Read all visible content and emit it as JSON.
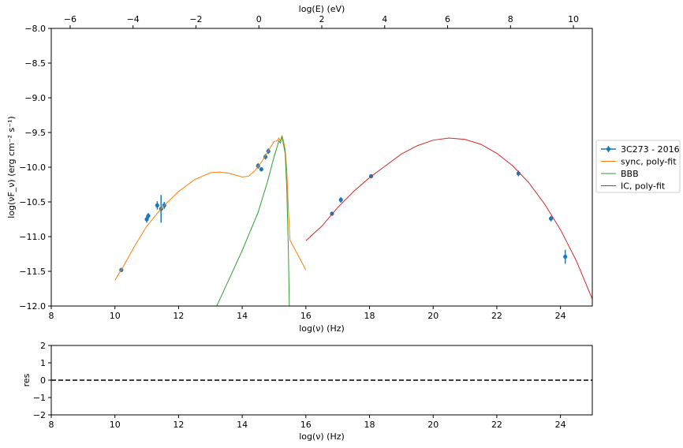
{
  "chart_data": [
    {
      "type": "line",
      "panel": "sed",
      "xlabel": "log(ν)  (Hz)",
      "ylabel": "log(νF_ν)  (erg cm⁻² s⁻¹)",
      "top_xlabel": "log(E) (eV)",
      "xlim": [
        8,
        25
      ],
      "ylim": [
        -12.0,
        -8.0
      ],
      "top_xlim": [
        -6.6,
        10.6
      ],
      "x_ticks": [
        8,
        10,
        12,
        14,
        16,
        18,
        20,
        22,
        24
      ],
      "y_ticks": [
        -12.0,
        -11.5,
        -11.0,
        -10.5,
        -10.0,
        -9.5,
        -9.0,
        -8.5,
        -8.0
      ],
      "y_tick_labels": [
        "−12.0",
        "−11.5",
        "−11.0",
        "−10.5",
        "−10.0",
        "−9.5",
        "−9.0",
        "−8.5",
        "−8.0"
      ],
      "top_ticks": [
        -6,
        -4,
        -2,
        0,
        2,
        4,
        6,
        8,
        10
      ],
      "top_tick_labels": [
        "−6",
        "−4",
        "−2",
        "0",
        "2",
        "4",
        "6",
        "8",
        "10"
      ],
      "legend_position": "outside-right",
      "grid": false,
      "series": [
        {
          "name": "3C273 - 2016",
          "kind": "errorbar",
          "color": "#1f77b4",
          "points": [
            {
              "x": 10.2,
              "y": -11.48,
              "yerr": 0.03
            },
            {
              "x": 11.0,
              "y": -10.75,
              "yerr": 0.05
            },
            {
              "x": 11.05,
              "y": -10.7,
              "yerr": 0.04
            },
            {
              "x": 11.33,
              "y": -10.55,
              "yerr": 0.06
            },
            {
              "x": 11.45,
              "y": -10.6,
              "yerr": 0.2
            },
            {
              "x": 11.55,
              "y": -10.55,
              "yerr": 0.05
            },
            {
              "x": 14.5,
              "y": -9.98,
              "yerr": 0.04
            },
            {
              "x": 14.6,
              "y": -10.03,
              "yerr": 0.03
            },
            {
              "x": 14.73,
              "y": -9.85,
              "yerr": 0.04
            },
            {
              "x": 14.82,
              "y": -9.77,
              "yerr": 0.04
            },
            {
              "x": 16.82,
              "y": -10.67,
              "yerr": 0.03
            },
            {
              "x": 17.1,
              "y": -10.47,
              "yerr": 0.04
            },
            {
              "x": 18.05,
              "y": -10.13,
              "yerr": 0.03
            },
            {
              "x": 22.68,
              "y": -10.09,
              "yerr": 0.04
            },
            {
              "x": 23.7,
              "y": -10.74,
              "yerr": 0.04
            },
            {
              "x": 24.15,
              "y": -11.29,
              "yerr": 0.1
            }
          ]
        },
        {
          "name": "sync, poly-fit",
          "kind": "line",
          "color": "#ff7f0e",
          "points": [
            [
              10.0,
              -11.63
            ],
            [
              10.3,
              -11.4
            ],
            [
              10.6,
              -11.15
            ],
            [
              11.0,
              -10.85
            ],
            [
              11.5,
              -10.57
            ],
            [
              12.0,
              -10.35
            ],
            [
              12.5,
              -10.18
            ],
            [
              13.0,
              -10.08
            ],
            [
              13.3,
              -10.07
            ],
            [
              13.6,
              -10.09
            ],
            [
              14.0,
              -10.14
            ],
            [
              14.2,
              -10.13
            ],
            [
              14.4,
              -10.05
            ],
            [
              14.6,
              -9.93
            ],
            [
              14.8,
              -9.78
            ],
            [
              15.0,
              -9.63
            ],
            [
              15.1,
              -9.62
            ],
            [
              15.15,
              -9.58
            ],
            [
              15.2,
              -9.62
            ],
            [
              15.25,
              -9.55
            ],
            [
              15.3,
              -9.63
            ],
            [
              15.35,
              -9.75
            ],
            [
              15.4,
              -10.05
            ],
            [
              15.45,
              -10.6
            ],
            [
              15.5,
              -11.05
            ],
            [
              16.0,
              -11.48
            ]
          ]
        },
        {
          "name": "BBB",
          "kind": "line",
          "color": "#2ca02c",
          "points": [
            [
              13.2,
              -12.0
            ],
            [
              13.6,
              -11.6
            ],
            [
              14.0,
              -11.2
            ],
            [
              14.5,
              -10.65
            ],
            [
              14.8,
              -10.2
            ],
            [
              15.0,
              -9.85
            ],
            [
              15.1,
              -9.7
            ],
            [
              15.15,
              -9.62
            ],
            [
              15.2,
              -9.65
            ],
            [
              15.25,
              -9.55
            ],
            [
              15.3,
              -9.68
            ],
            [
              15.35,
              -9.8
            ],
            [
              15.4,
              -10.3
            ],
            [
              15.45,
              -11.2
            ],
            [
              15.48,
              -12.0
            ]
          ]
        },
        {
          "name": "IC, poly-fit",
          "kind": "line",
          "color": "#d62728",
          "points": [
            [
              16.0,
              -11.06
            ],
            [
              16.5,
              -10.85
            ],
            [
              17.0,
              -10.58
            ],
            [
              17.5,
              -10.35
            ],
            [
              18.0,
              -10.15
            ],
            [
              18.5,
              -9.98
            ],
            [
              19.0,
              -9.81
            ],
            [
              19.5,
              -9.69
            ],
            [
              20.0,
              -9.61
            ],
            [
              20.5,
              -9.58
            ],
            [
              21.0,
              -9.6
            ],
            [
              21.5,
              -9.67
            ],
            [
              22.0,
              -9.8
            ],
            [
              22.5,
              -9.98
            ],
            [
              23.0,
              -10.22
            ],
            [
              23.5,
              -10.53
            ],
            [
              24.0,
              -10.9
            ],
            [
              24.5,
              -11.35
            ],
            [
              25.0,
              -11.9
            ]
          ]
        }
      ]
    },
    {
      "type": "line",
      "panel": "residuals",
      "xlabel": "log(ν)  (Hz)",
      "ylabel": "res",
      "xlim": [
        8,
        25
      ],
      "ylim": [
        -2,
        2
      ],
      "x_ticks": [
        8,
        10,
        12,
        14,
        16,
        18,
        20,
        22,
        24
      ],
      "y_ticks": [
        -2,
        -1,
        0,
        1,
        2
      ],
      "y_tick_labels": [
        "−2",
        "−1",
        "0",
        "1",
        "2"
      ],
      "series": [
        {
          "kind": "hline",
          "y": 0,
          "style": "dashed",
          "color": "#000000"
        }
      ]
    }
  ]
}
